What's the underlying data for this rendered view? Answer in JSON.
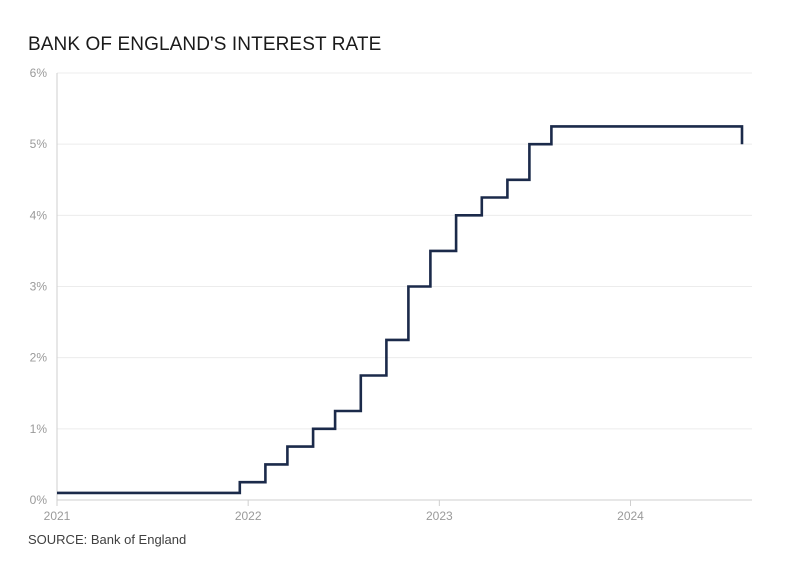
{
  "chart_data": {
    "type": "line",
    "title": "BANK OF ENGLAND'S INTEREST RATE",
    "source": "SOURCE: Bank of England",
    "xlabel": "",
    "ylabel": "",
    "x_scale": "date",
    "xlim": [
      "2021-01-01",
      "2024-08-20"
    ],
    "ylim": [
      0,
      6
    ],
    "yticks": [
      0,
      1,
      2,
      3,
      4,
      5,
      6
    ],
    "ytick_labels": [
      "0%",
      "1%",
      "2%",
      "3%",
      "4%",
      "5%",
      "6%"
    ],
    "xticks": [
      "2021-01-01",
      "2022-01-01",
      "2023-01-01",
      "2024-01-01"
    ],
    "xtick_labels": [
      "2021",
      "2022",
      "2023",
      "2024"
    ],
    "grid": true,
    "step": true,
    "line_color": "#1b2a4a",
    "series": [
      {
        "name": "",
        "x": [
          "2021-01-01",
          "2021-12-16",
          "2022-02-03",
          "2022-03-17",
          "2022-05-05",
          "2022-06-16",
          "2022-08-04",
          "2022-09-22",
          "2022-11-03",
          "2022-12-15",
          "2023-02-02",
          "2023-03-23",
          "2023-05-11",
          "2023-06-22",
          "2023-08-03",
          "2024-08-01"
        ],
        "y": [
          0.1,
          0.25,
          0.5,
          0.75,
          1.0,
          1.25,
          1.75,
          2.25,
          3.0,
          3.5,
          4.0,
          4.25,
          4.5,
          5.0,
          5.25,
          5.0
        ]
      }
    ],
    "x_end": "2024-08-01"
  }
}
